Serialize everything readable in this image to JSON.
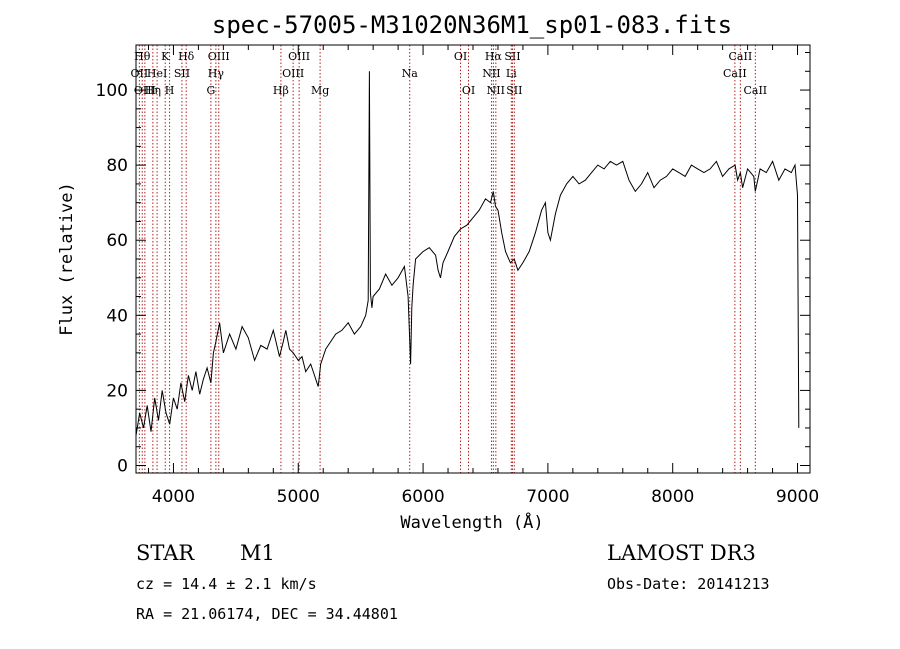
{
  "chart_data": {
    "type": "line",
    "title": "spec-57005-M31020N36M1_sp01-083.fits",
    "xlabel": "Wavelength (Å)",
    "ylabel": "Flux (relative)",
    "xlim": [
      3700,
      9100
    ],
    "ylim": [
      -2,
      112
    ],
    "x_ticks": [
      4000,
      5000,
      6000,
      7000,
      8000,
      9000
    ],
    "y_ticks": [
      0,
      20,
      40,
      60,
      80,
      100
    ],
    "grid": false,
    "series": [
      {
        "name": "spectrum",
        "x": [
          3700,
          3730,
          3760,
          3790,
          3820,
          3850,
          3880,
          3910,
          3940,
          3970,
          4000,
          4030,
          4060,
          4090,
          4120,
          4150,
          4180,
          4210,
          4240,
          4270,
          4300,
          4320,
          4340,
          4370,
          4400,
          4450,
          4500,
          4550,
          4600,
          4650,
          4700,
          4750,
          4800,
          4850,
          4880,
          4900,
          4930,
          4960,
          5000,
          5030,
          5060,
          5100,
          5130,
          5160,
          5180,
          5200,
          5220,
          5260,
          5300,
          5350,
          5400,
          5450,
          5500,
          5540,
          5560,
          5570,
          5578,
          5590,
          5600,
          5650,
          5700,
          5750,
          5800,
          5850,
          5880,
          5900,
          5910,
          5920,
          5940,
          6000,
          6050,
          6100,
          6120,
          6140,
          6160,
          6200,
          6250,
          6300,
          6350,
          6400,
          6450,
          6500,
          6540,
          6563,
          6580,
          6600,
          6630,
          6660,
          6700,
          6730,
          6760,
          6800,
          6850,
          6900,
          6950,
          6980,
          7000,
          7020,
          7060,
          7100,
          7150,
          7200,
          7250,
          7300,
          7350,
          7400,
          7450,
          7500,
          7550,
          7600,
          7650,
          7700,
          7750,
          7800,
          7850,
          7900,
          7950,
          8000,
          8050,
          8100,
          8150,
          8200,
          8250,
          8300,
          8350,
          8400,
          8450,
          8500,
          8520,
          8542,
          8560,
          8600,
          8650,
          8662,
          8700,
          8750,
          8800,
          8850,
          8900,
          8950,
          8980,
          9000,
          9010
        ],
        "y": [
          8,
          14,
          10,
          16,
          9,
          18,
          12,
          20,
          14,
          11,
          18,
          15,
          22,
          17,
          24,
          20,
          25,
          19,
          23,
          26,
          22,
          30,
          33,
          38,
          30,
          35,
          31,
          37,
          34,
          28,
          32,
          31,
          36,
          29,
          33,
          36,
          31,
          30,
          28,
          29,
          25,
          27,
          24,
          21,
          27,
          29,
          31,
          33,
          35,
          36,
          38,
          35,
          37,
          40,
          44,
          105,
          46,
          42,
          45,
          47,
          51,
          48,
          50,
          53,
          45,
          27,
          42,
          48,
          55,
          57,
          58,
          56,
          52,
          50,
          54,
          57,
          61,
          63,
          64,
          66,
          68,
          71,
          70,
          73,
          69,
          68,
          62,
          57,
          54,
          55,
          52,
          54,
          57,
          62,
          68,
          70,
          62,
          60,
          67,
          72,
          75,
          77,
          75,
          76,
          78,
          80,
          79,
          81,
          80,
          81,
          76,
          73,
          75,
          78,
          74,
          76,
          77,
          79,
          78,
          77,
          80,
          79,
          78,
          79,
          81,
          77,
          79,
          80,
          76,
          78,
          74,
          79,
          77,
          73,
          79,
          78,
          81,
          76,
          79,
          78,
          80,
          72,
          10
        ],
        "color": "#000000"
      }
    ],
    "emission_lines": [
      {
        "wavelength": 3727,
        "label": "OII",
        "row": 2
      },
      {
        "wavelength": 3750,
        "label": "Hθ",
        "row": 1
      },
      {
        "wavelength": 3771,
        "label": "OIII",
        "row": 3
      },
      {
        "wavelength": 3835,
        "label": "Hη",
        "row": 3
      },
      {
        "wavelength": 3869,
        "label": "HeI",
        "row": 2
      },
      {
        "wavelength": 3934,
        "label": "K",
        "row": 1
      },
      {
        "wavelength": 3969,
        "label": "H",
        "row": 3
      },
      {
        "wavelength": 4068,
        "label": "SII",
        "row": 2
      },
      {
        "wavelength": 4102,
        "label": "Hδ",
        "row": 1
      },
      {
        "wavelength": 4300,
        "label": "G",
        "row": 3
      },
      {
        "wavelength": 4340,
        "label": "Hγ",
        "row": 2
      },
      {
        "wavelength": 4363,
        "label": "OIII",
        "row": 1
      },
      {
        "wavelength": 4861,
        "label": "Hβ",
        "row": 3
      },
      {
        "wavelength": 4959,
        "label": "OIII",
        "row": 2
      },
      {
        "wavelength": 5007,
        "label": "OIII",
        "row": 1
      },
      {
        "wavelength": 5175,
        "label": "Mg",
        "row": 3
      },
      {
        "wavelength": 5893,
        "label": "Na",
        "row": 2
      },
      {
        "wavelength": 6300,
        "label": "OI",
        "row": 1
      },
      {
        "wavelength": 6364,
        "label": "OI",
        "row": 3
      },
      {
        "wavelength": 6548,
        "label": "NII",
        "row": 2
      },
      {
        "wavelength": 6563,
        "label": "Hα",
        "row": 1
      },
      {
        "wavelength": 6583,
        "label": "NII",
        "row": 3
      },
      {
        "wavelength": 6707,
        "label": "Li",
        "row": 2
      },
      {
        "wavelength": 6716,
        "label": "SII",
        "row": 1
      },
      {
        "wavelength": 6731,
        "label": "SII",
        "row": 3
      },
      {
        "wavelength": 8498,
        "label": "CaII",
        "row": 2
      },
      {
        "wavelength": 8542,
        "label": "CaII",
        "row": 1
      },
      {
        "wavelength": 8662,
        "label": "CaII",
        "row": 3
      }
    ],
    "line_marker_color": "#b22222"
  },
  "info": {
    "object_type": "STAR",
    "subclass": "M1",
    "survey": "LAMOST DR3",
    "redshift": "cz = 14.4 ± 2.1 km/s",
    "obs_date": "Obs-Date: 20141213",
    "coords": "RA =  21.06174, DEC =  34.44801"
  }
}
